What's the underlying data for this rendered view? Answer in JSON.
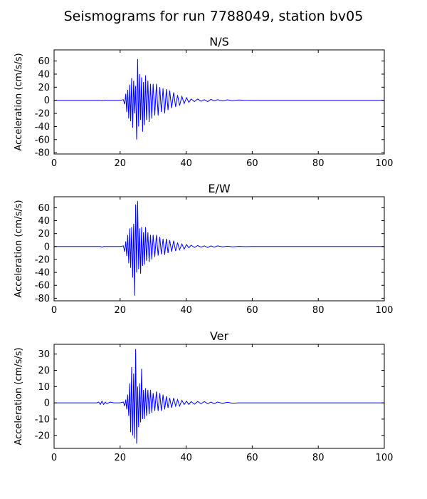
{
  "figure": {
    "title": "Seismograms for run 7788049, station bv05"
  },
  "chart_data": [
    {
      "type": "line",
      "title": "N/S",
      "xlabel": "",
      "ylabel": "Acceleration (cm/s/s)",
      "xlim": [
        0,
        100
      ],
      "ylim": [
        -82,
        77
      ],
      "xticks": [
        0,
        20,
        40,
        60,
        80,
        100
      ],
      "yticks": [
        -80,
        -60,
        -40,
        -20,
        0,
        20,
        40,
        60
      ],
      "grid": false,
      "line_color": "#0000ff",
      "series": [
        {
          "x": [
            0,
            14,
            14.5,
            15,
            16,
            18,
            20,
            21,
            21.4,
            21.7,
            22.0,
            22.3,
            22.6,
            22.9,
            23.2,
            23.5,
            23.8,
            24.1,
            24.4,
            24.7,
            25.0,
            25.3,
            25.6,
            25.9,
            26.2,
            26.5,
            26.8,
            27.1,
            27.4,
            27.7,
            28.0,
            28.4,
            28.8,
            29.2,
            29.6,
            30.0,
            30.5,
            31.0,
            31.5,
            32.0,
            32.5,
            33.0,
            33.5,
            34.0,
            34.5,
            35.0,
            35.6,
            36.2,
            36.8,
            37.4,
            38.0,
            38.7,
            39.4,
            40.1,
            40.8,
            41.5,
            42.5,
            43.5,
            44.5,
            45.5,
            46.5,
            47.5,
            48.5,
            49.5,
            51,
            52.5,
            54,
            56,
            58,
            60,
            65,
            70,
            80,
            90,
            100
          ],
          "y": [
            0,
            0,
            -1,
            0,
            0,
            0,
            0,
            1,
            -6,
            10,
            -18,
            16,
            -28,
            24,
            -32,
            34,
            -42,
            30,
            -20,
            22,
            -60,
            63,
            -40,
            40,
            -30,
            35,
            -48,
            28,
            -38,
            38,
            -30,
            30,
            -33,
            25,
            -28,
            25,
            -23,
            25,
            -23,
            20,
            -18,
            18,
            -20,
            17,
            -15,
            15,
            -12,
            12,
            -10,
            8,
            -8,
            6,
            -5,
            4,
            -3,
            2,
            -2,
            2,
            -1.5,
            1,
            -2,
            1.5,
            -1,
            1,
            -1,
            0.8,
            -0.5,
            0.5,
            -0.3,
            0,
            0,
            0,
            0,
            0,
            0
          ]
        }
      ]
    },
    {
      "type": "line",
      "title": "E/W",
      "xlabel": "",
      "ylabel": "Acceleration (cm/s/s)",
      "xlim": [
        0,
        100
      ],
      "ylim": [
        -84,
        77
      ],
      "xticks": [
        0,
        20,
        40,
        60,
        80,
        100
      ],
      "yticks": [
        -80,
        -60,
        -40,
        -20,
        0,
        20,
        40,
        60
      ],
      "grid": false,
      "line_color": "#0000ff",
      "series": [
        {
          "x": [
            0,
            14,
            14.5,
            15,
            16,
            18,
            20,
            21,
            21.4,
            21.7,
            22.0,
            22.3,
            22.6,
            22.9,
            23.2,
            23.5,
            23.8,
            24.1,
            24.4,
            24.7,
            25.0,
            25.3,
            25.6,
            25.9,
            26.2,
            26.5,
            26.8,
            27.1,
            27.4,
            27.7,
            28.0,
            28.4,
            28.8,
            29.2,
            29.6,
            30.0,
            30.5,
            31.0,
            31.5,
            32.0,
            32.5,
            33.0,
            33.5,
            34.0,
            34.5,
            35.0,
            35.6,
            36.2,
            36.8,
            37.4,
            38.0,
            38.7,
            39.4,
            40.1,
            40.8,
            41.5,
            42.5,
            43.5,
            44.5,
            45.5,
            46.5,
            47.5,
            48.5,
            49.5,
            51,
            52.5,
            54,
            56,
            58,
            60,
            65,
            70,
            80,
            90,
            100
          ],
          "y": [
            0,
            0,
            -1,
            0,
            0,
            0,
            0,
            1,
            -8,
            8,
            -15,
            18,
            -26,
            28,
            -33,
            30,
            -48,
            35,
            -76,
            65,
            -40,
            70,
            -35,
            28,
            -42,
            30,
            -30,
            22,
            -28,
            30,
            -22,
            22,
            -24,
            18,
            -20,
            18,
            -16,
            18,
            -14,
            15,
            -12,
            12,
            -13,
            12,
            -10,
            10,
            -8,
            9,
            -7,
            6,
            -5,
            4,
            -4,
            3,
            -2,
            2,
            -1.5,
            1.5,
            -1,
            1,
            -1.5,
            1,
            -1,
            1,
            -0.5,
            0.5,
            -0.5,
            0.3,
            -0.2,
            0,
            0,
            0,
            0,
            0,
            0
          ]
        }
      ]
    },
    {
      "type": "line",
      "title": "Ver",
      "xlabel": "",
      "ylabel": "Acceleration (cm/s/s)",
      "xlim": [
        0,
        100
      ],
      "ylim": [
        -28,
        36
      ],
      "xticks": [
        0,
        20,
        40,
        60,
        80,
        100
      ],
      "yticks": [
        -20,
        -10,
        0,
        10,
        20,
        30
      ],
      "grid": false,
      "line_color": "#0000ff",
      "series": [
        {
          "x": [
            0,
            13,
            13.5,
            14,
            14.5,
            15,
            15.5,
            16,
            17,
            18,
            20,
            21,
            21.4,
            21.7,
            22.0,
            22.3,
            22.6,
            22.9,
            23.2,
            23.5,
            23.8,
            24.1,
            24.4,
            24.7,
            25.0,
            25.3,
            25.6,
            25.9,
            26.2,
            26.5,
            26.8,
            27.1,
            27.4,
            27.7,
            28.0,
            28.4,
            28.8,
            29.2,
            29.6,
            30.0,
            30.5,
            31.0,
            31.5,
            32.0,
            32.5,
            33.0,
            33.5,
            34.0,
            34.5,
            35.0,
            35.6,
            36.2,
            36.8,
            37.4,
            38.0,
            38.7,
            39.4,
            40.1,
            40.8,
            41.5,
            42.5,
            43.5,
            44.5,
            45.5,
            46.5,
            47.5,
            48.5,
            49.5,
            51,
            52.5,
            54,
            56,
            58,
            60,
            65,
            70,
            80,
            90,
            100
          ],
          "y": [
            0,
            0,
            0.5,
            -1,
            1,
            -1,
            0.5,
            -0.5,
            0.5,
            0,
            0,
            0.5,
            -2,
            2,
            -4,
            5,
            -8,
            12,
            -18,
            22,
            -20,
            18,
            -22,
            33,
            -25,
            10,
            -15,
            12,
            -12,
            21,
            -10,
            8,
            -10,
            9,
            -8,
            8,
            -7,
            8,
            -6,
            6,
            -5,
            7,
            -5,
            6,
            -5,
            5,
            -4,
            4,
            -3,
            3,
            -3,
            3,
            -2,
            2,
            -2,
            1.5,
            -1,
            1,
            -1,
            0.8,
            -0.8,
            0.8,
            -0.5,
            0.8,
            -0.5,
            0.5,
            -0.5,
            0.5,
            -0.3,
            0.3,
            -0.2,
            0,
            0,
            0,
            0,
            0,
            0,
            0,
            0
          ]
        }
      ]
    }
  ]
}
